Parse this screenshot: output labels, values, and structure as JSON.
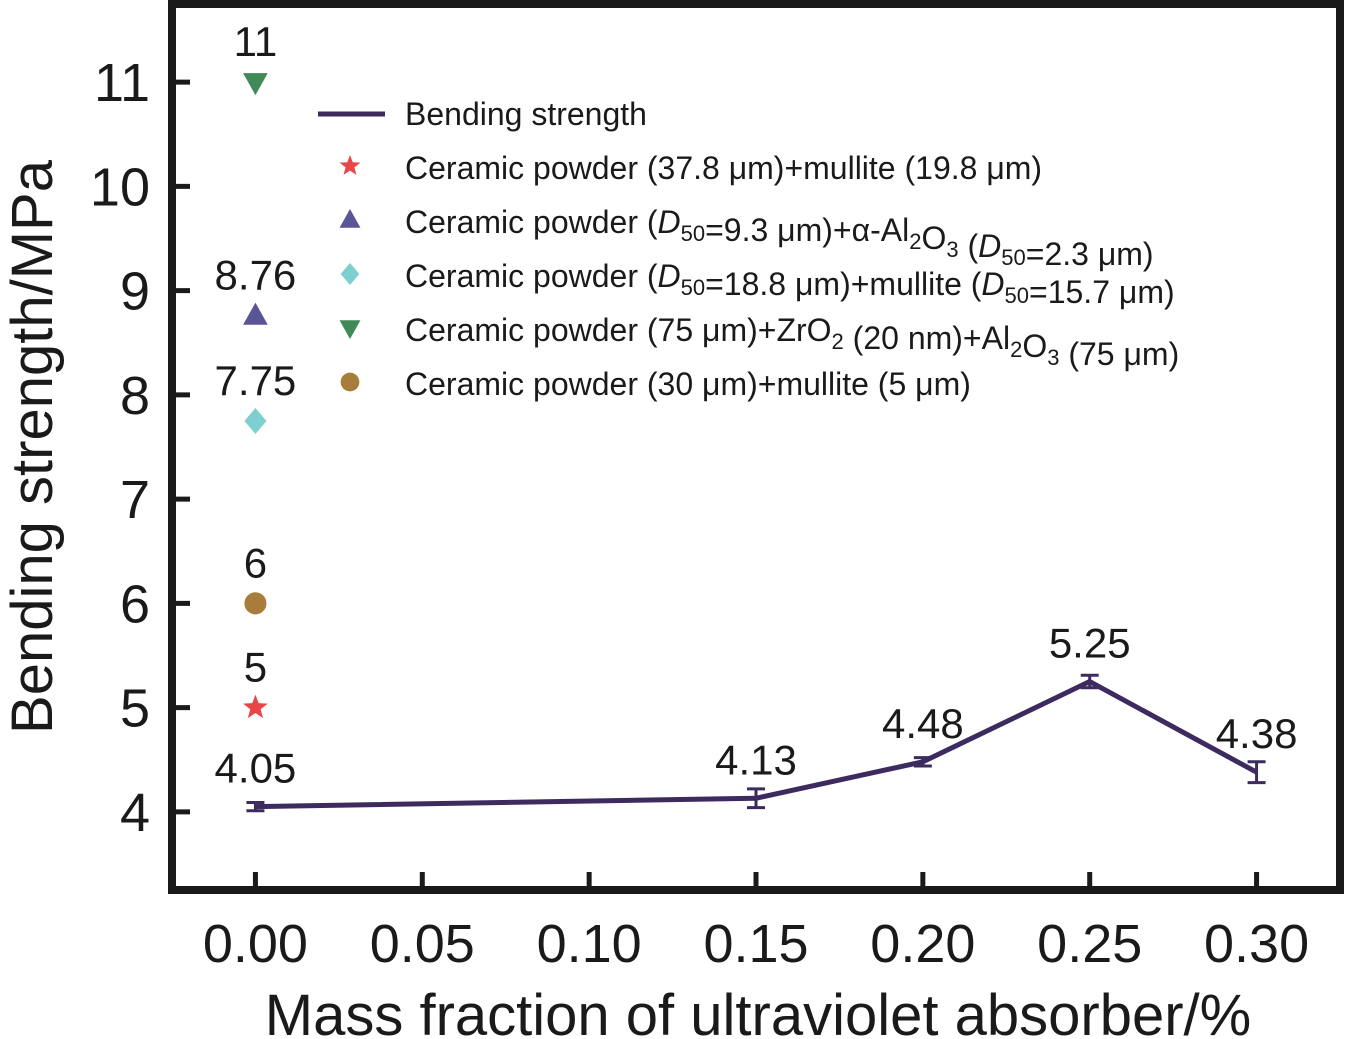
{
  "chart_data": {
    "type": "line",
    "xlabel": "Mass fraction of ultraviolet absorber/%",
    "ylabel": "Bending strength/MPa",
    "xlim": [
      -0.025,
      0.325
    ],
    "ylim": [
      3.25,
      11.75
    ],
    "x_ticks": [
      "0.00",
      "0.05",
      "0.10",
      "0.15",
      "0.20",
      "0.25",
      "0.30"
    ],
    "y_ticks": [
      "4",
      "5",
      "6",
      "7",
      "8",
      "9",
      "10",
      "11"
    ],
    "grid": false,
    "legend_position": "top-right",
    "series": [
      {
        "name": "Bending strength",
        "marker": "line",
        "color": "#3d2a5e",
        "points": [
          {
            "x": 0.0,
            "y": 4.05,
            "label": "4.05",
            "err": 0.04
          },
          {
            "x": 0.15,
            "y": 4.13,
            "label": "4.13",
            "err": 0.09
          },
          {
            "x": 0.2,
            "y": 4.48,
            "label": "4.48",
            "err": 0.04
          },
          {
            "x": 0.25,
            "y": 5.25,
            "label": "5.25",
            "err": 0.06
          },
          {
            "x": 0.3,
            "y": 4.38,
            "label": "4.38",
            "err": 0.1
          }
        ]
      },
      {
        "name": "Ceramic powder (37.8 μm)+mullite (19.8 μm)",
        "name_parts": [
          {
            "t": "Ceramic powder (37.8 μm)+mullite (19.8 μm)"
          }
        ],
        "marker": "star",
        "color": "#e8474a",
        "points": [
          {
            "x": 0.0,
            "y": 5,
            "label": "5"
          }
        ]
      },
      {
        "name": "Ceramic powder (D50=9.3 μm)+α-Al2O3 (D50=2.3 μm)",
        "name_parts": [
          {
            "t": "Ceramic powder ("
          },
          {
            "t": "D",
            "i": true
          },
          {
            "t": "50",
            "sub": true
          },
          {
            "t": "=9.3 μm)+α-Al"
          },
          {
            "t": "2",
            "sub": true
          },
          {
            "t": "O"
          },
          {
            "t": "3",
            "sub": true
          },
          {
            "t": " ("
          },
          {
            "t": "D",
            "i": true
          },
          {
            "t": "50",
            "sub": true
          },
          {
            "t": "=2.3 μm)"
          }
        ],
        "marker": "triangle-up",
        "color": "#5b5499",
        "points": [
          {
            "x": 0.0,
            "y": 8.76,
            "label": "8.76"
          }
        ]
      },
      {
        "name": "Ceramic powder (D50=18.8 μm)+mullite (D50=15.7 μm)",
        "name_parts": [
          {
            "t": "Ceramic powder ("
          },
          {
            "t": "D",
            "i": true
          },
          {
            "t": "50",
            "sub": true
          },
          {
            "t": "=18.8 μm)+mullite ("
          },
          {
            "t": "D",
            "i": true
          },
          {
            "t": "50",
            "sub": true
          },
          {
            "t": "=15.7 μm)"
          }
        ],
        "marker": "diamond",
        "color": "#7ecfcf",
        "points": [
          {
            "x": 0.0,
            "y": 7.75,
            "label": "7.75"
          }
        ]
      },
      {
        "name": "Ceramic powder (75 μm)+ZrO2 (20 nm)+Al2O3 (75 μm)",
        "name_parts": [
          {
            "t": "Ceramic powder (75 μm)+ZrO"
          },
          {
            "t": "2",
            "sub": true
          },
          {
            "t": " (20 nm)+Al"
          },
          {
            "t": "2",
            "sub": true
          },
          {
            "t": "O"
          },
          {
            "t": "3",
            "sub": true
          },
          {
            "t": " (75 μm)"
          }
        ],
        "marker": "triangle-down",
        "color": "#3f8a56",
        "points": [
          {
            "x": 0.0,
            "y": 11,
            "label": "11"
          }
        ]
      },
      {
        "name": "Ceramic powder (30 μm)+mullite (5 μm)",
        "name_parts": [
          {
            "t": "Ceramic powder (30 μm)+mullite (5 μm)"
          }
        ],
        "marker": "circle",
        "color": "#a87c3a",
        "points": [
          {
            "x": 0.0,
            "y": 6,
            "label": "6"
          }
        ]
      }
    ]
  }
}
